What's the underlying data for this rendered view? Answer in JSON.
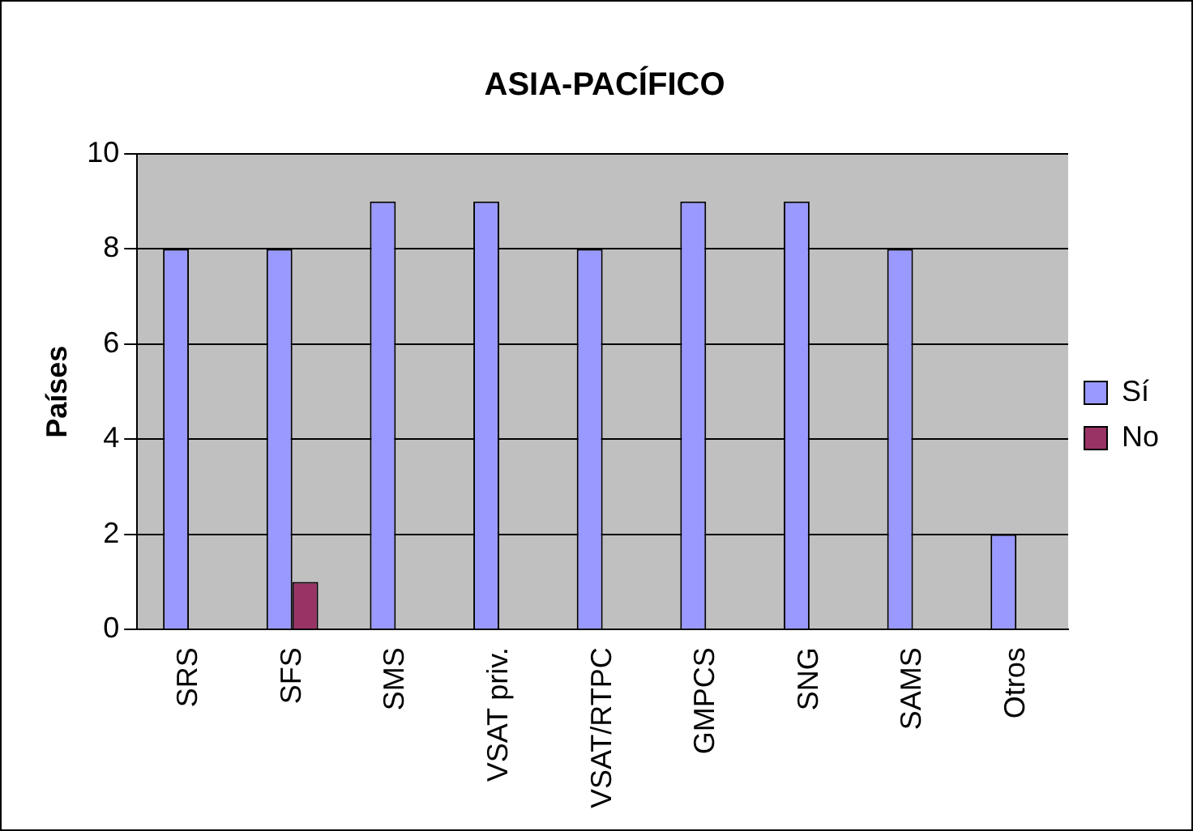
{
  "chart_data": {
    "type": "bar",
    "title": "ASIA-PACÍFICO",
    "ylabel": "Países",
    "categories": [
      "SRS",
      "SFS",
      "SMS",
      "VSAT priv.",
      "VSAT/RTPC",
      "GMPCS",
      "SNG",
      "SAMS",
      "Otros"
    ],
    "series": [
      {
        "name": "Sí",
        "color": "#9999ff",
        "values": [
          8,
          8,
          9,
          9,
          8,
          9,
          9,
          8,
          2
        ]
      },
      {
        "name": "No",
        "color": "#993366",
        "values": [
          null,
          1,
          null,
          null,
          null,
          null,
          null,
          null,
          null
        ]
      }
    ],
    "ylim": [
      0,
      10
    ],
    "yticks": [
      0,
      2,
      4,
      6,
      8,
      10
    ],
    "grid": "y",
    "legend": "right"
  }
}
